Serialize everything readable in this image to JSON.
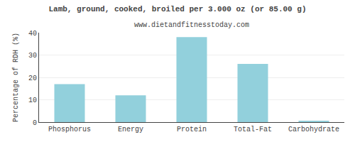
{
  "chart_data": {
    "type": "bar",
    "title": "Lamb, ground, cooked, broiled per 3.000 oz (or 85.00 g)",
    "subtitle": "www.dietandfitnesstoday.com",
    "categories": [
      "Phosphorus",
      "Energy",
      "Protein",
      "Total-Fat",
      "Carbohydrate"
    ],
    "values": [
      17,
      12,
      38,
      26,
      0.5
    ],
    "color": "#92D0DC",
    "ylabel": "Percentage of RDH (%)",
    "ylim": [
      0,
      40
    ],
    "yticks": [
      0,
      10,
      20,
      30,
      40
    ],
    "grid": true
  }
}
